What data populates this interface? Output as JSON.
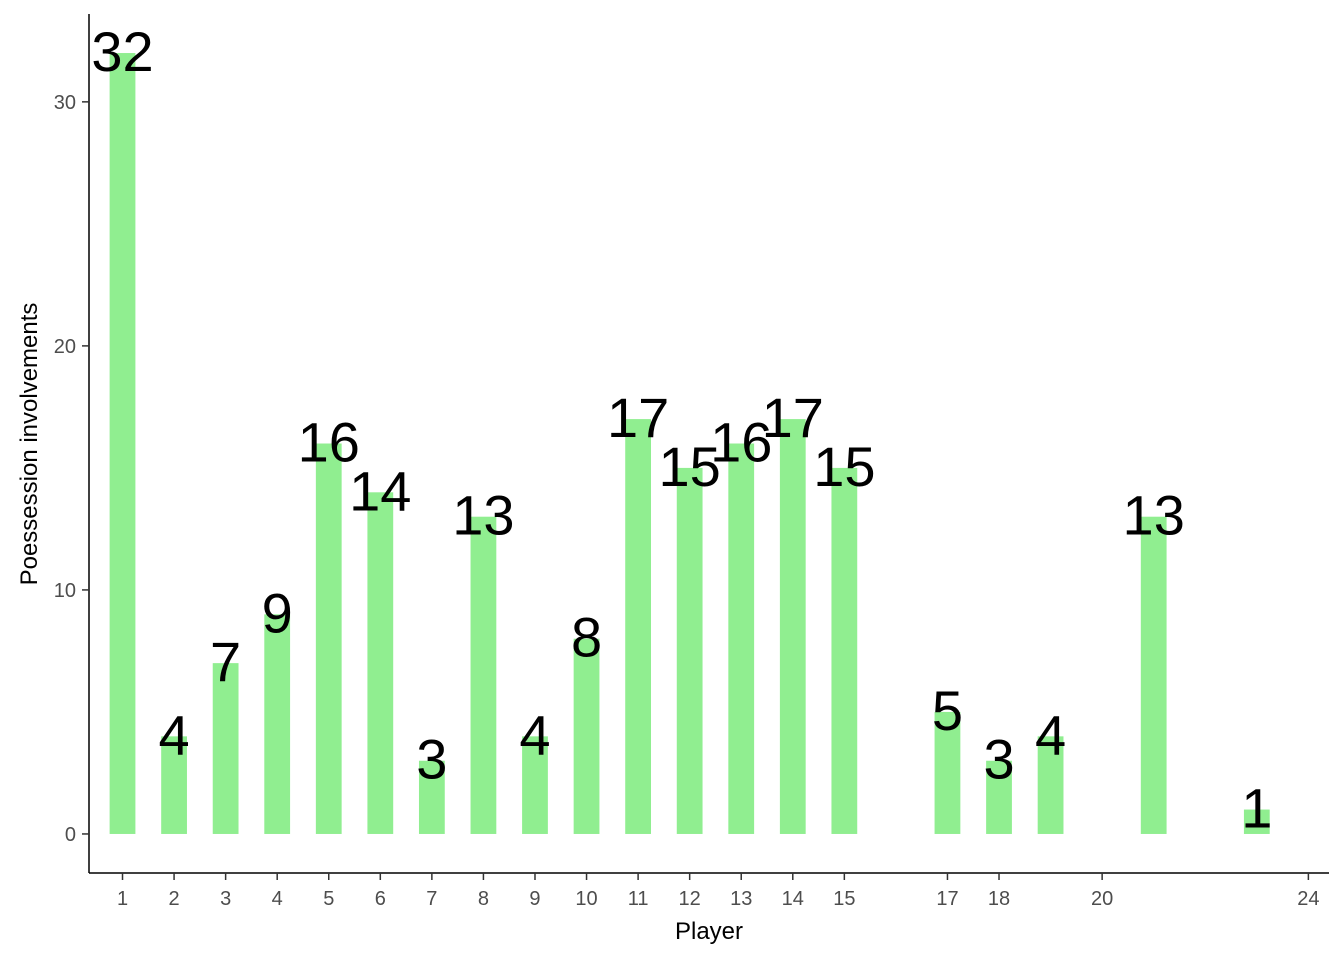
{
  "chart_data": {
    "type": "bar",
    "xlabel": "Player",
    "ylabel": "Poessession involvements",
    "x": [
      1,
      2,
      3,
      4,
      5,
      6,
      7,
      8,
      9,
      10,
      11,
      12,
      13,
      14,
      15,
      17,
      18,
      19,
      21,
      23
    ],
    "values": [
      32,
      4,
      7,
      9,
      16,
      14,
      3,
      13,
      4,
      8,
      17,
      15,
      16,
      17,
      15,
      5,
      3,
      4,
      13,
      1
    ],
    "data_labels": [
      "32",
      "4",
      "7",
      "9",
      "16",
      "14",
      "3",
      "13",
      "4",
      "8",
      "17",
      "15",
      "16",
      "17",
      "15",
      "5",
      "3",
      "4",
      "13",
      "1"
    ],
    "x_ticks": [
      1,
      2,
      3,
      4,
      5,
      6,
      7,
      8,
      9,
      10,
      11,
      12,
      13,
      14,
      15,
      17,
      18,
      20,
      24
    ],
    "x_tick_labels": [
      "1",
      "2",
      "3",
      "4",
      "5",
      "6",
      "7",
      "8",
      "9",
      "10",
      "11",
      "12",
      "13",
      "14",
      "15",
      "17",
      "18",
      "20",
      "24"
    ],
    "y_ticks": [
      0,
      10,
      20,
      30
    ],
    "y_tick_labels": [
      "0",
      "10",
      "20",
      "30"
    ],
    "xlim": [
      0.35,
      24.4
    ],
    "ylim": [
      -1.6,
      33.6
    ],
    "bar_color": "#90EE90",
    "grid": false,
    "legend": "none"
  }
}
